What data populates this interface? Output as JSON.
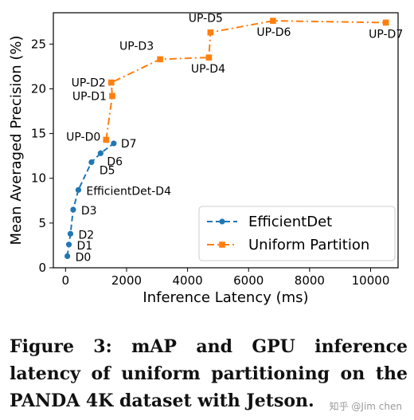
{
  "chart_data": {
    "type": "line",
    "xlabel": "Inference Latency (ms)",
    "ylabel": "Mean Averaged Precision (%)",
    "xlim": [
      -400,
      10900
    ],
    "ylim": [
      0,
      28.5
    ],
    "x_ticks": [
      0,
      2000,
      4000,
      6000,
      8000,
      10000
    ],
    "y_ticks": [
      0,
      5,
      10,
      15,
      20,
      25
    ],
    "grid": false,
    "legend_position": "lower-right",
    "series": [
      {
        "name": "EfficientDet",
        "color": "#1f77b4",
        "marker": "circle",
        "line_style": "dashed",
        "points": [
          {
            "label": "D0",
            "x": 60,
            "y": 1.3
          },
          {
            "label": "D1",
            "x": 110,
            "y": 2.6
          },
          {
            "label": "D2",
            "x": 160,
            "y": 3.8
          },
          {
            "label": "D3",
            "x": 250,
            "y": 6.5
          },
          {
            "label": "EfficientDet-D4",
            "x": 420,
            "y": 8.7
          },
          {
            "label": "D5",
            "x": 850,
            "y": 11.8
          },
          {
            "label": "D6",
            "x": 1150,
            "y": 12.8
          },
          {
            "label": "D7",
            "x": 1580,
            "y": 13.9
          }
        ]
      },
      {
        "name": "Uniform Partition",
        "color": "#ff7f0e",
        "marker": "square",
        "line_style": "dashdot",
        "points": [
          {
            "label": "UP-D0",
            "x": 1330,
            "y": 14.3
          },
          {
            "label": "UP-D1",
            "x": 1530,
            "y": 19.2
          },
          {
            "label": "UP-D2",
            "x": 1500,
            "y": 20.7
          },
          {
            "label": "UP-D3",
            "x": 3100,
            "y": 23.3
          },
          {
            "label": "UP-D4",
            "x": 4700,
            "y": 23.5
          },
          {
            "label": "UP-D5",
            "x": 4750,
            "y": 26.3
          },
          {
            "label": "UP-D6",
            "x": 6800,
            "y": 27.6
          },
          {
            "label": "UP-D7",
            "x": 10500,
            "y": 27.4
          }
        ]
      }
    ]
  },
  "caption": "Figure 3: mAP and GPU inference latency of uniform partitioning on the PANDA 4K dataset with Jetson.",
  "watermark": "知乎 @Jim chen"
}
